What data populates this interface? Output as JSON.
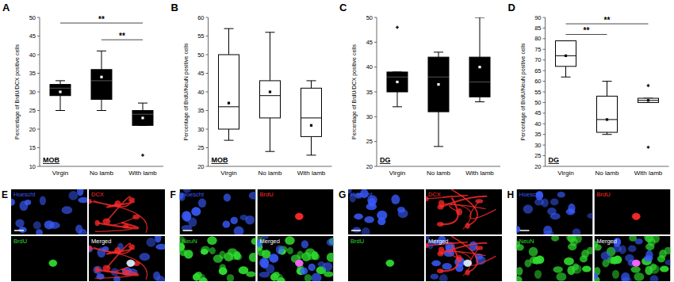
{
  "chart_data": [
    {
      "type": "box",
      "panel": "A",
      "region": "MOB",
      "y_label": "Percentage of BrdU/DCX positive cells",
      "categories": [
        "Virgin",
        "No lamb",
        "With lamb"
      ],
      "color": "#000000",
      "min": [
        25,
        25,
        21
      ],
      "q1": [
        29,
        28,
        21
      ],
      "median": [
        31,
        33,
        24
      ],
      "q3": [
        32,
        36,
        25
      ],
      "max": [
        33,
        41,
        27
      ],
      "mean": [
        30,
        34,
        23
      ],
      "outliers": [
        [],
        [],
        [
          13
        ]
      ],
      "annotations": [
        {
          "text": "**",
          "from": 0,
          "to": 2,
          "y": 48.5
        },
        {
          "text": "**",
          "from": 1,
          "to": 2,
          "y": 44
        }
      ],
      "ylim": [
        10,
        50
      ],
      "yticks": [
        10,
        15,
        20,
        25,
        30,
        35,
        40,
        45,
        50
      ]
    },
    {
      "type": "box",
      "panel": "B",
      "region": "MOB",
      "y_label": "Percentage of BrdU/NeuN positive cells",
      "categories": [
        "Virgin",
        "No lamb",
        "With lamb"
      ],
      "color": "#ffffff",
      "min": [
        27,
        24,
        23
      ],
      "q1": [
        30,
        33,
        28
      ],
      "median": [
        36,
        39,
        33
      ],
      "q3": [
        50,
        43,
        41
      ],
      "max": [
        57,
        56,
        43
      ],
      "mean": [
        37,
        40,
        31
      ],
      "outliers": [
        [],
        [],
        []
      ],
      "annotations": [],
      "ylim": [
        20,
        60
      ],
      "yticks": [
        20,
        25,
        30,
        35,
        40,
        45,
        50,
        55,
        60
      ]
    },
    {
      "type": "box",
      "panel": "C",
      "region": "DG",
      "y_label": "Percentage of BrdU/DCX positive cells",
      "categories": [
        "Virgin",
        "No lamb",
        "With lamb"
      ],
      "color": "#000000",
      "min": [
        32,
        24,
        33
      ],
      "q1": [
        35,
        31,
        34
      ],
      "median": [
        38,
        38,
        37
      ],
      "q3": [
        39,
        42,
        42
      ],
      "max": [
        39,
        43,
        50
      ],
      "mean": [
        37,
        36.5,
        40
      ],
      "outliers": [
        [
          48
        ],
        [],
        []
      ],
      "annotations": [],
      "ylim": [
        20,
        50
      ],
      "yticks": [
        20,
        25,
        30,
        35,
        40,
        45,
        50
      ]
    },
    {
      "type": "box",
      "panel": "D",
      "region": "DG",
      "y_label": "Percentage of BrdU/NeuN positive cells",
      "categories": [
        "Virgin",
        "No lamb",
        "With lamb"
      ],
      "color": "#ffffff",
      "min": [
        62,
        35,
        50
      ],
      "q1": [
        67,
        36,
        50
      ],
      "median": [
        72,
        42,
        51
      ],
      "q3": [
        79,
        53,
        52
      ],
      "max": [
        79,
        60,
        52
      ],
      "mean": [
        72,
        42,
        51
      ],
      "outliers": [
        [],
        [],
        [
          58,
          29
        ]
      ],
      "annotations": [
        {
          "text": "**",
          "from": 0,
          "to": 2,
          "y": 87
        },
        {
          "text": "**",
          "from": 0,
          "to": 1,
          "y": 82
        }
      ],
      "ylim": [
        20,
        90
      ],
      "yticks": [
        20,
        25,
        30,
        35,
        40,
        45,
        50,
        55,
        60,
        65,
        70,
        75,
        80,
        85,
        90
      ]
    }
  ],
  "images": [
    {
      "panel": "E",
      "tiles": [
        {
          "label": "Hoescht",
          "color": "#3a5cff"
        },
        {
          "label": "DCX",
          "color": "#ff2a2a"
        },
        {
          "label": "BrdU",
          "color": "#2fdc2f"
        },
        {
          "label": "Merged",
          "color": "#ffffff"
        }
      ]
    },
    {
      "panel": "F",
      "tiles": [
        {
          "label": "Hoescht",
          "color": "#3a5cff"
        },
        {
          "label": "BrdU",
          "color": "#ff2a2a"
        },
        {
          "label": "NeuN",
          "color": "#2fdc2f"
        },
        {
          "label": "Merged",
          "color": "#ffffff"
        }
      ]
    },
    {
      "panel": "G",
      "tiles": [
        {
          "label": "Hoescht",
          "color": "#3a5cff"
        },
        {
          "label": "DCX",
          "color": "#ff2a2a"
        },
        {
          "label": "BrdU",
          "color": "#2fdc2f"
        },
        {
          "label": "Merged",
          "color": "#ffffff"
        }
      ]
    },
    {
      "panel": "H",
      "tiles": [
        {
          "label": "Hoescht",
          "color": "#3a5cff"
        },
        {
          "label": "BrdU",
          "color": "#ff2a2a"
        },
        {
          "label": "NeuN",
          "color": "#2fdc2f"
        },
        {
          "label": "Merged",
          "color": "#ffffff"
        }
      ]
    }
  ]
}
